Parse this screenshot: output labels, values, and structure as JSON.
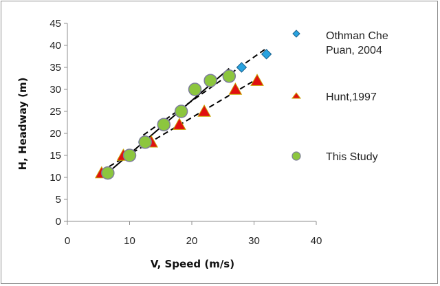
{
  "chart_data": {
    "type": "scatter",
    "xlabel": "V, Speed (m/s)",
    "ylabel": "H, Headway (m)",
    "xlim": [
      0,
      40
    ],
    "ylim": [
      0,
      45
    ],
    "xticks": [
      "0",
      "10",
      "20",
      "30",
      "40"
    ],
    "yticks": [
      "0",
      "5",
      "10",
      "15",
      "20",
      "25",
      "30",
      "35",
      "40",
      "45"
    ],
    "grid": false,
    "legend_position": "right",
    "series": [
      {
        "name": "Othman Che Puan, 2004",
        "marker": "diamond",
        "color": "#29a3e0",
        "trendline": "dashed",
        "points": [
          [
            12.2,
            18
          ],
          [
            18.2,
            25
          ],
          [
            20.3,
            30
          ],
          [
            23.1,
            32
          ],
          [
            28.0,
            35
          ],
          [
            32.0,
            38
          ]
        ]
      },
      {
        "name": "Hunt,1997",
        "marker": "triangle",
        "color": "#e01010",
        "trendline": "dashed",
        "points": [
          [
            5.5,
            11
          ],
          [
            9.0,
            15
          ],
          [
            13.5,
            18
          ],
          [
            18.0,
            22
          ],
          [
            22.0,
            25
          ],
          [
            27.0,
            30
          ],
          [
            30.5,
            32
          ]
        ]
      },
      {
        "name": "This Study",
        "marker": "circle",
        "color": "#8cc63e",
        "trendline": "solid",
        "points": [
          [
            6.5,
            11
          ],
          [
            10.0,
            15
          ],
          [
            12.5,
            18
          ],
          [
            15.5,
            22
          ],
          [
            18.3,
            25
          ],
          [
            20.5,
            30
          ],
          [
            23.0,
            32
          ],
          [
            26.0,
            33
          ]
        ]
      }
    ],
    "legend": [
      "Othman Che",
      "Puan, 2004",
      "Hunt,1997",
      "This Study"
    ]
  }
}
